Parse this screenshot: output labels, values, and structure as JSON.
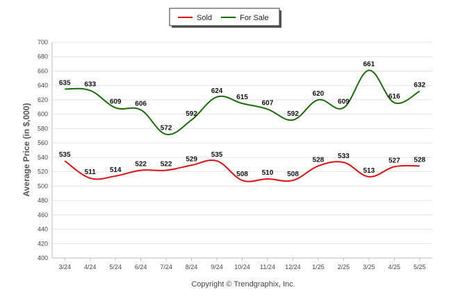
{
  "chart_data": {
    "type": "line",
    "ylabel": "Average Price (in $,000)",
    "ylim": [
      400,
      700
    ],
    "yticks": [
      400,
      420,
      440,
      460,
      480,
      500,
      520,
      540,
      560,
      580,
      600,
      620,
      640,
      660,
      680,
      700
    ],
    "grid": true,
    "legend": "top-center",
    "categories": [
      "3/24",
      "4/24",
      "5/24",
      "6/24",
      "7/24",
      "8/24",
      "9/24",
      "10/24",
      "11/24",
      "12/24",
      "1/25",
      "2/25",
      "3/25",
      "4/25",
      "5/25"
    ],
    "series": [
      {
        "name": "Sold",
        "color": "#e01010",
        "values": [
          535,
          511,
          514,
          522,
          522,
          529,
          535,
          508,
          510,
          508,
          528,
          533,
          513,
          527,
          528
        ]
      },
      {
        "name": "For Sale",
        "color": "#1a6b0a",
        "values": [
          635,
          633,
          609,
          606,
          572,
          592,
          624,
          615,
          607,
          592,
          620,
          609,
          661,
          616,
          632
        ]
      }
    ],
    "credit": "Copyright © Trendgraphix, Inc."
  }
}
